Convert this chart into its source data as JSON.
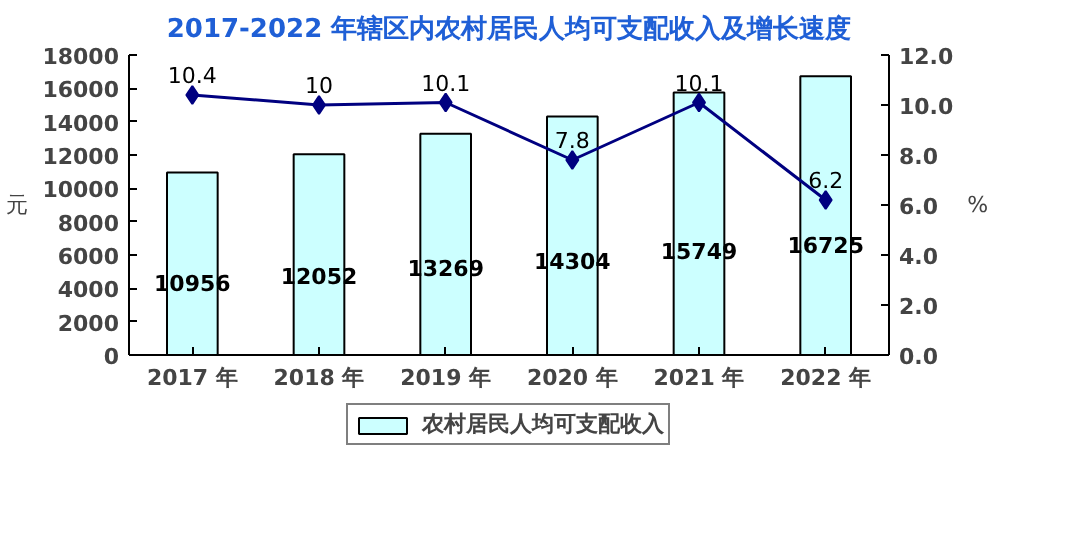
{
  "chart_data": {
    "type": "bar",
    "title": "2017-2022 年辖区内农村居民人均可支配收入及增长速度",
    "ylabel": "元",
    "y2label": "%",
    "categories": [
      "2017 年",
      "2018 年",
      "2019 年",
      "2020 年",
      "2021 年",
      "2022 年"
    ],
    "series": [
      {
        "name": "农村居民人均可支配收入",
        "type": "bar",
        "color": "#ccffff",
        "values": [
          10956,
          12052,
          13269,
          14304,
          15749,
          16725
        ]
      },
      {
        "type": "line",
        "axis": "y2",
        "color": "#000080",
        "marker": "diamond",
        "values": [
          10.4,
          10,
          10.1,
          7.8,
          10.1,
          6.2
        ]
      }
    ],
    "ylim": [
      0,
      18000
    ],
    "yticks": [
      0,
      2000,
      4000,
      6000,
      8000,
      10000,
      12000,
      14000,
      16000,
      18000
    ],
    "y2lim": [
      0,
      12
    ],
    "y2ticks": [
      {
        "value": 0,
        "label": "0.0"
      },
      {
        "value": 2,
        "label": "2.0"
      },
      {
        "value": 4,
        "label": "4.0"
      },
      {
        "value": 6,
        "label": "6.0"
      },
      {
        "value": 8,
        "label": "8.0"
      },
      {
        "value": 10,
        "label": "10.0"
      },
      {
        "value": 12,
        "label": "12.0"
      }
    ],
    "data_labels": true,
    "legend": "bottom",
    "grid": false
  }
}
